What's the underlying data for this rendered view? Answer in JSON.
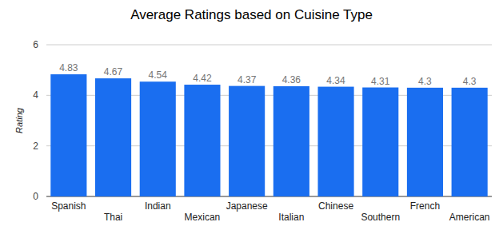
{
  "chart_data": {
    "type": "bar",
    "title": "Average Ratings based on Cuisine Type",
    "y_label": "Rating",
    "categories": [
      "Spanish",
      "Thai",
      "Indian",
      "Mexican",
      "Japanese",
      "Italian",
      "Chinese",
      "Southern",
      "French",
      "American"
    ],
    "values": [
      4.83,
      4.67,
      4.54,
      4.42,
      4.37,
      4.36,
      4.34,
      4.31,
      4.3,
      4.3
    ],
    "color": "#1a6ef0",
    "ylim": [
      0,
      6
    ],
    "yticks": [
      0,
      2,
      4,
      6
    ],
    "grid": true,
    "data_labels": true
  }
}
